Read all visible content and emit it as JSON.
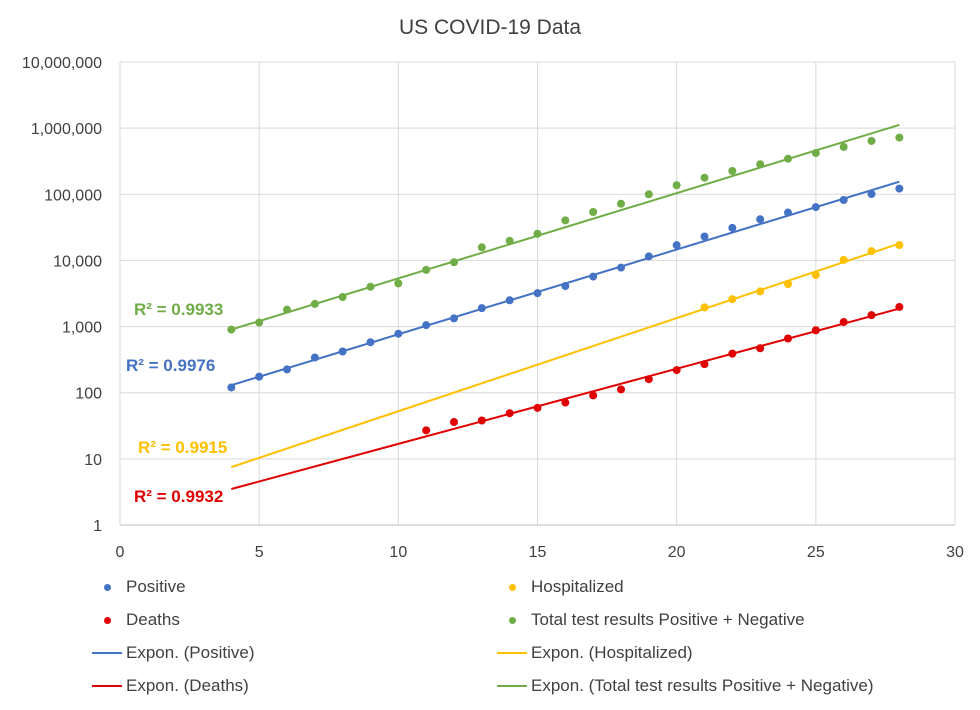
{
  "chart_data": {
    "type": "scatter",
    "title": "US COVID-19 Data",
    "xlabel": "",
    "ylabel": "",
    "xlim": [
      0,
      30
    ],
    "ylim": [
      1,
      10000000
    ],
    "yscale": "log",
    "grid": true,
    "legend_position": "bottom",
    "x_ticks": [
      "0",
      "5",
      "10",
      "15",
      "20",
      "25",
      "30"
    ],
    "y_ticks": [
      "1",
      "10",
      "100",
      "1,000",
      "10,000",
      "100,000",
      "1,000,000",
      "10,000,000"
    ],
    "series": [
      {
        "name": "Positive",
        "color": "#4472c4",
        "x": [
          4,
          5,
          6,
          7,
          8,
          9,
          10,
          11,
          12,
          13,
          14,
          15,
          16,
          17,
          18,
          19,
          20,
          21,
          22,
          23,
          24,
          25,
          26,
          27,
          28
        ],
        "y": [
          120,
          175,
          225,
          340,
          420,
          580,
          780,
          1050,
          1330,
          1900,
          2500,
          3200,
          4100,
          5700,
          7800,
          11500,
          17000,
          23000,
          31000,
          42000,
          53000,
          64000,
          82000,
          101000,
          122000
        ]
      },
      {
        "name": "Hospitalized",
        "color": "#ffc000",
        "x": [
          21,
          22,
          23,
          24,
          25,
          26,
          27,
          28
        ],
        "y": [
          1950,
          2600,
          3400,
          4400,
          6000,
          10200,
          13800,
          17100
        ]
      },
      {
        "name": "Deaths",
        "color": "#e00000",
        "x": [
          11,
          12,
          13,
          14,
          15,
          16,
          17,
          18,
          19,
          20,
          21,
          22,
          23,
          24,
          25,
          26,
          27,
          28
        ],
        "y": [
          27,
          36,
          38,
          49,
          59,
          71,
          91,
          112,
          160,
          220,
          270,
          390,
          470,
          660,
          880,
          1170,
          1490,
          1980
        ]
      },
      {
        "name": "Total test results Positive + Negative",
        "color": "#70ad47",
        "x": [
          4,
          5,
          6,
          7,
          8,
          9,
          10,
          11,
          12,
          13,
          14,
          15,
          16,
          17,
          18,
          19,
          20,
          21,
          22,
          23,
          24,
          25,
          26,
          27,
          28
        ],
        "y": [
          900,
          1150,
          1800,
          2200,
          2800,
          4000,
          4500,
          7200,
          9400,
          15800,
          19800,
          25300,
          40300,
          54000,
          72000,
          100000,
          137000,
          178000,
          225000,
          285000,
          345000,
          420000,
          520000,
          640000,
          720000
        ]
      }
    ],
    "trendlines": [
      {
        "name": "Expon. (Positive)",
        "color": "#4472c4",
        "x": [
          4,
          28
        ],
        "y": [
          130,
          155000
        ],
        "r2_label": "R² = 0.9976"
      },
      {
        "name": "Expon. (Hospitalized)",
        "color": "#ffc000",
        "x": [
          4,
          28
        ],
        "y": [
          7.5,
          18000
        ],
        "r2_label": "R² = 0.9915"
      },
      {
        "name": "Expon. (Deaths)",
        "color": "#e00000",
        "x": [
          4,
          28
        ],
        "y": [
          3.5,
          1870
        ],
        "r2_label": "R² = 0.9932"
      },
      {
        "name": "Expon. (Total test results Positive + Negative)",
        "color": "#70ad47",
        "x": [
          4,
          28
        ],
        "y": [
          900,
          1120000
        ],
        "r2_label": "R² = 0.9933"
      }
    ]
  },
  "legend": {
    "items": [
      {
        "label": "Positive",
        "kind": "dot",
        "color": "#4472c4"
      },
      {
        "label": "Hospitalized",
        "kind": "dot",
        "color": "#ffc000"
      },
      {
        "label": "Deaths",
        "kind": "dot",
        "color": "#e00000"
      },
      {
        "label": "Total test results Positive + Negative",
        "kind": "dot",
        "color": "#70ad47"
      },
      {
        "label": "Expon. (Positive)",
        "kind": "line",
        "color": "#4472c4"
      },
      {
        "label": "Expon. (Hospitalized)",
        "kind": "line",
        "color": "#ffc000"
      },
      {
        "label": "Expon. (Deaths)",
        "kind": "line",
        "color": "#e00000"
      },
      {
        "label": "Expon. (Total test results Positive + Negative)",
        "kind": "line",
        "color": "#70ad47"
      }
    ]
  }
}
